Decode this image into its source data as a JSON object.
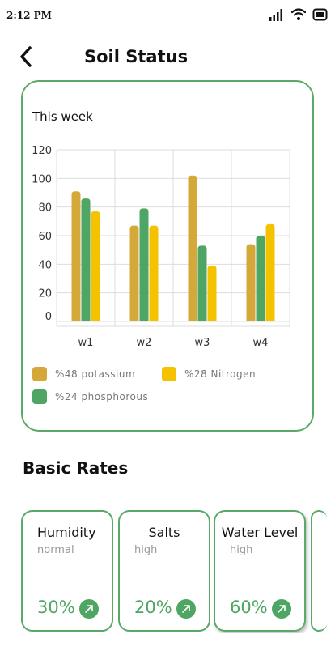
{
  "status_bar": {
    "time": "2:12 PM"
  },
  "header": {
    "title": "Soil Status"
  },
  "chart_card": {
    "caption": "This week"
  },
  "chart_data": {
    "type": "bar",
    "categories": [
      "w1",
      "w2",
      "w3",
      "w4"
    ],
    "series": [
      {
        "name": "%48 potassium",
        "color": "#d4a93a",
        "values": [
          91,
          67,
          102,
          54
        ]
      },
      {
        "name": "%24 phosphorous",
        "color": "#4fa563",
        "values": [
          86,
          79,
          53,
          60
        ]
      },
      {
        "name": "%28 Nitrogen",
        "color": "#f5c200",
        "values": [
          77,
          67,
          39,
          68
        ]
      }
    ],
    "ylim": [
      0,
      120
    ],
    "yticks": [
      0,
      20,
      40,
      60,
      80,
      100,
      120
    ],
    "grid": true,
    "legend_position": "bottom"
  },
  "section": {
    "title": "Basic Rates"
  },
  "rates": [
    {
      "name": "Humidity",
      "level": "normal",
      "value": "30%"
    },
    {
      "name": "Salts",
      "level": "high",
      "value": "20%"
    },
    {
      "name": "Water Level",
      "level": "high",
      "value": "60%"
    }
  ]
}
